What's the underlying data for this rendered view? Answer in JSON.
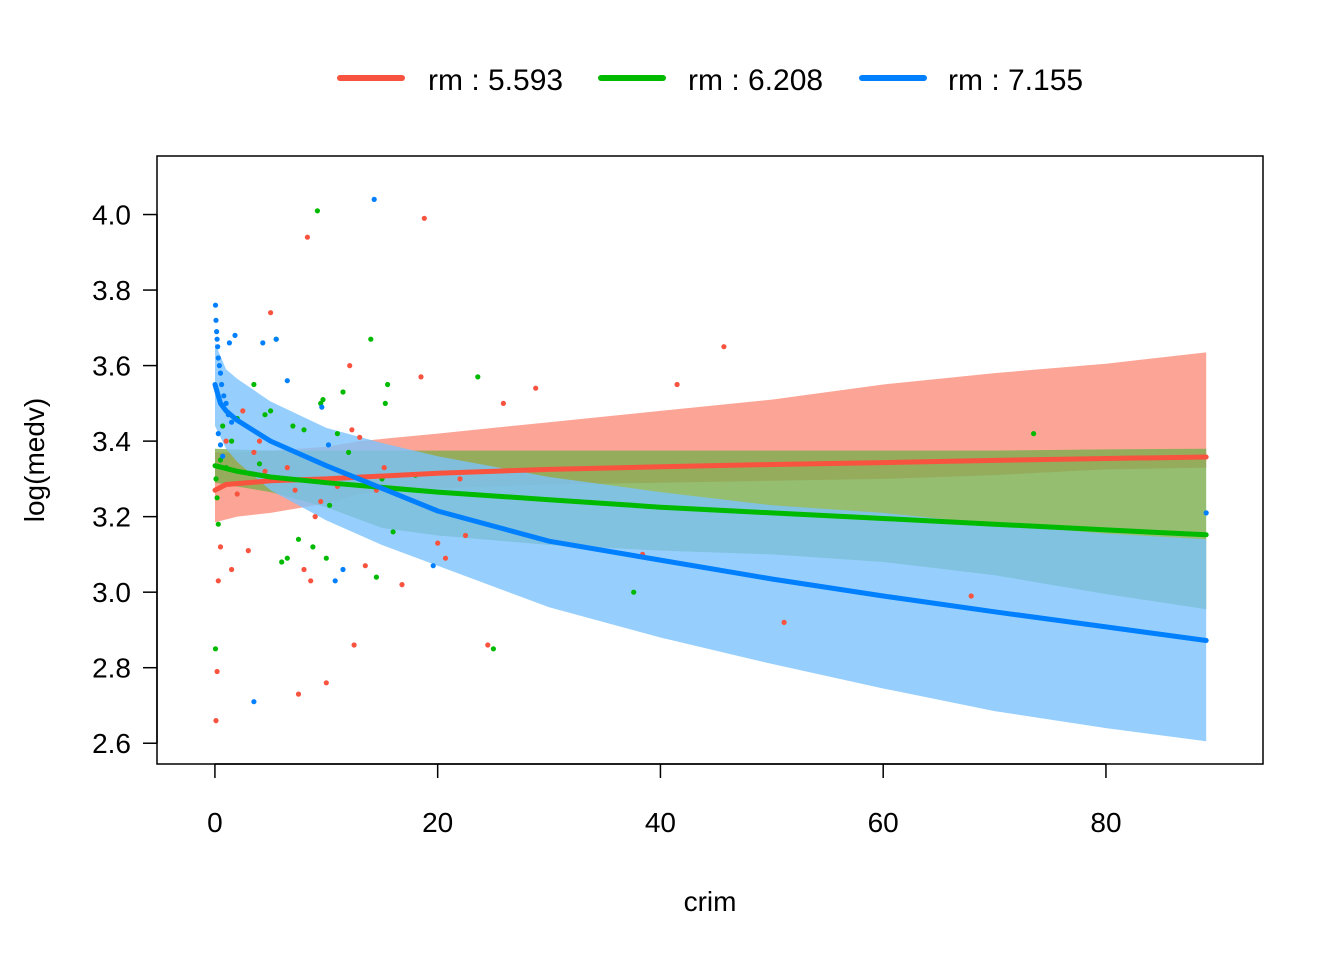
{
  "chart_data": {
    "type": "line",
    "xlabel": "crim",
    "ylabel": "log(medv)",
    "xlim": [
      -5.2,
      94.1
    ],
    "ylim": [
      2.545,
      4.155
    ],
    "x_ticks": [
      0,
      20,
      40,
      60,
      80
    ],
    "y_ticks": [
      2.6,
      2.8,
      3.0,
      3.2,
      3.4,
      3.6,
      3.8,
      4.0
    ],
    "x_tick_labels": [
      "0",
      "20",
      "40",
      "60",
      "80"
    ],
    "y_tick_labels": [
      "2.6",
      "2.8",
      "3.0",
      "3.2",
      "3.4",
      "3.6",
      "3.8",
      "4.0"
    ],
    "legend_position": "top",
    "series": [
      {
        "name": "rm : 5.593",
        "color": "#F8533E",
        "band_color": "#FCA495",
        "curve": [
          [
            0.006,
            3.27
          ],
          [
            1,
            3.285
          ],
          [
            5,
            3.295
          ],
          [
            10,
            3.3
          ],
          [
            20,
            3.315
          ],
          [
            30,
            3.325
          ],
          [
            40,
            3.332
          ],
          [
            50,
            3.338
          ],
          [
            60,
            3.343
          ],
          [
            70,
            3.349
          ],
          [
            80,
            3.354
          ],
          [
            89,
            3.358
          ]
        ],
        "band_lower": [
          [
            0.006,
            3.185
          ],
          [
            2,
            3.2
          ],
          [
            5,
            3.21
          ],
          [
            10,
            3.235
          ],
          [
            13,
            3.26
          ],
          [
            20,
            3.275
          ],
          [
            30,
            3.285
          ],
          [
            40,
            3.29
          ],
          [
            50,
            3.295
          ],
          [
            60,
            3.3
          ],
          [
            70,
            3.31
          ],
          [
            80,
            3.325
          ],
          [
            89,
            3.33
          ]
        ],
        "band_upper": [
          [
            0.006,
            3.37
          ],
          [
            2,
            3.37
          ],
          [
            5,
            3.375
          ],
          [
            10,
            3.385
          ],
          [
            13,
            3.4
          ],
          [
            20,
            3.42
          ],
          [
            30,
            3.45
          ],
          [
            40,
            3.48
          ],
          [
            50,
            3.51
          ],
          [
            60,
            3.55
          ],
          [
            70,
            3.58
          ],
          [
            80,
            3.605
          ],
          [
            89,
            3.635
          ]
        ],
        "points": [
          [
            0.1,
            2.66
          ],
          [
            0.2,
            2.79
          ],
          [
            0.3,
            3.03
          ],
          [
            0.5,
            3.12
          ],
          [
            1.0,
            3.4
          ],
          [
            1.5,
            3.06
          ],
          [
            2.0,
            3.26
          ],
          [
            2.5,
            3.48
          ],
          [
            3.0,
            3.11
          ],
          [
            3.5,
            3.37
          ],
          [
            4.0,
            3.4
          ],
          [
            4.5,
            3.32
          ],
          [
            5.0,
            3.74
          ],
          [
            6.5,
            3.33
          ],
          [
            7.2,
            3.27
          ],
          [
            7.5,
            2.73
          ],
          [
            8.0,
            3.06
          ],
          [
            8.3,
            3.94
          ],
          [
            8.6,
            3.03
          ],
          [
            9.0,
            3.2
          ],
          [
            9.5,
            3.24
          ],
          [
            10.0,
            2.76
          ],
          [
            11.0,
            3.28
          ],
          [
            12.1,
            3.6
          ],
          [
            12.3,
            3.43
          ],
          [
            12.5,
            2.86
          ],
          [
            13.0,
            3.41
          ],
          [
            13.5,
            3.07
          ],
          [
            14.5,
            3.27
          ],
          [
            15.2,
            3.33
          ],
          [
            16.8,
            3.02
          ],
          [
            18.5,
            3.57
          ],
          [
            18.8,
            3.99
          ],
          [
            20.0,
            3.13
          ],
          [
            20.7,
            3.09
          ],
          [
            22.0,
            3.3
          ],
          [
            22.5,
            3.15
          ],
          [
            24.5,
            2.86
          ],
          [
            25.9,
            3.5
          ],
          [
            28.8,
            3.54
          ],
          [
            38.4,
            3.1
          ],
          [
            41.5,
            3.55
          ],
          [
            45.7,
            3.65
          ],
          [
            51.1,
            2.92
          ],
          [
            67.9,
            2.99
          ]
        ]
      },
      {
        "name": "rm : 6.208",
        "color": "#00BA00",
        "band_color": "#7BAE4E",
        "curve": [
          [
            0.006,
            3.335
          ],
          [
            2,
            3.32
          ],
          [
            5,
            3.305
          ],
          [
            10,
            3.29
          ],
          [
            20,
            3.265
          ],
          [
            30,
            3.245
          ],
          [
            40,
            3.225
          ],
          [
            50,
            3.21
          ],
          [
            60,
            3.195
          ],
          [
            70,
            3.18
          ],
          [
            80,
            3.165
          ],
          [
            89,
            3.152
          ]
        ],
        "band_lower": [
          [
            0.006,
            3.29
          ],
          [
            5,
            3.265
          ],
          [
            10,
            3.225
          ],
          [
            15,
            3.17
          ],
          [
            20,
            3.15
          ],
          [
            30,
            3.125
          ],
          [
            40,
            3.11
          ],
          [
            50,
            3.1
          ],
          [
            60,
            3.08
          ],
          [
            70,
            3.045
          ],
          [
            80,
            2.995
          ],
          [
            89,
            2.955
          ]
        ],
        "band_upper": [
          [
            0.006,
            3.38
          ],
          [
            5,
            3.375
          ],
          [
            10,
            3.375
          ],
          [
            20,
            3.375
          ],
          [
            30,
            3.375
          ],
          [
            40,
            3.375
          ],
          [
            50,
            3.375
          ],
          [
            60,
            3.375
          ],
          [
            70,
            3.375
          ],
          [
            80,
            3.378
          ],
          [
            89,
            3.38
          ]
        ],
        "points": [
          [
            0.05,
            2.85
          ],
          [
            0.1,
            3.3
          ],
          [
            0.2,
            3.25
          ],
          [
            0.3,
            3.18
          ],
          [
            0.5,
            3.35
          ],
          [
            0.7,
            3.44
          ],
          [
            1.0,
            3.33
          ],
          [
            1.5,
            3.4
          ],
          [
            2.0,
            3.46
          ],
          [
            3.5,
            3.55
          ],
          [
            4.0,
            3.34
          ],
          [
            4.5,
            3.47
          ],
          [
            5.0,
            3.48
          ],
          [
            5.5,
            3.67
          ],
          [
            6.0,
            3.08
          ],
          [
            6.5,
            3.09
          ],
          [
            7.0,
            3.44
          ],
          [
            7.5,
            3.14
          ],
          [
            8.0,
            3.43
          ],
          [
            8.8,
            3.12
          ],
          [
            9.2,
            4.01
          ],
          [
            9.5,
            3.5
          ],
          [
            9.7,
            3.51
          ],
          [
            10.0,
            3.09
          ],
          [
            10.3,
            3.23
          ],
          [
            11.0,
            3.42
          ],
          [
            11.5,
            3.53
          ],
          [
            12.0,
            3.37
          ],
          [
            14.0,
            3.67
          ],
          [
            14.5,
            3.04
          ],
          [
            15.0,
            3.3
          ],
          [
            15.3,
            3.5
          ],
          [
            15.5,
            3.55
          ],
          [
            16.0,
            3.16
          ],
          [
            18.0,
            3.31
          ],
          [
            23.6,
            3.57
          ],
          [
            25.0,
            2.85
          ],
          [
            37.6,
            3.0
          ],
          [
            73.5,
            3.42
          ]
        ]
      },
      {
        "name": "rm : 7.155",
        "color": "#0080FF",
        "band_color": "#7CC3FC",
        "curve": [
          [
            0.006,
            3.55
          ],
          [
            0.5,
            3.5
          ],
          [
            1,
            3.48
          ],
          [
            2,
            3.455
          ],
          [
            5,
            3.4
          ],
          [
            10,
            3.335
          ],
          [
            15,
            3.275
          ],
          [
            20,
            3.215
          ],
          [
            30,
            3.135
          ],
          [
            40,
            3.085
          ],
          [
            50,
            3.035
          ],
          [
            60,
            2.99
          ],
          [
            70,
            2.948
          ],
          [
            80,
            2.908
          ],
          [
            89,
            2.872
          ]
        ],
        "band_lower": [
          [
            0.006,
            3.44
          ],
          [
            1,
            3.38
          ],
          [
            2,
            3.345
          ],
          [
            5,
            3.27
          ],
          [
            10,
            3.19
          ],
          [
            15,
            3.125
          ],
          [
            20,
            3.07
          ],
          [
            30,
            2.96
          ],
          [
            40,
            2.88
          ],
          [
            50,
            2.81
          ],
          [
            60,
            2.745
          ],
          [
            70,
            2.685
          ],
          [
            80,
            2.64
          ],
          [
            89,
            2.605
          ]
        ],
        "band_upper": [
          [
            0.006,
            3.66
          ],
          [
            1,
            3.59
          ],
          [
            2,
            3.565
          ],
          [
            5,
            3.505
          ],
          [
            10,
            3.435
          ],
          [
            15,
            3.395
          ],
          [
            20,
            3.36
          ],
          [
            30,
            3.305
          ],
          [
            40,
            3.265
          ],
          [
            50,
            3.23
          ],
          [
            60,
            3.21
          ],
          [
            70,
            3.18
          ],
          [
            80,
            3.155
          ],
          [
            89,
            3.14
          ]
        ],
        "points": [
          [
            0.05,
            3.76
          ],
          [
            0.1,
            3.72
          ],
          [
            0.15,
            3.69
          ],
          [
            0.2,
            3.67
          ],
          [
            0.25,
            3.65
          ],
          [
            0.3,
            3.62
          ],
          [
            0.4,
            3.6
          ],
          [
            0.5,
            3.58
          ],
          [
            0.6,
            3.55
          ],
          [
            0.8,
            3.52
          ],
          [
            1.0,
            3.5
          ],
          [
            1.2,
            3.47
          ],
          [
            1.5,
            3.45
          ],
          [
            0.3,
            3.42
          ],
          [
            0.5,
            3.39
          ],
          [
            0.7,
            3.36
          ],
          [
            1.3,
            3.66
          ],
          [
            1.8,
            3.68
          ],
          [
            3.5,
            2.71
          ],
          [
            4.3,
            3.66
          ],
          [
            5.5,
            3.67
          ],
          [
            6.5,
            3.56
          ],
          [
            9.6,
            3.49
          ],
          [
            10.2,
            3.39
          ],
          [
            10.8,
            3.03
          ],
          [
            11.5,
            3.06
          ],
          [
            14.3,
            4.04
          ],
          [
            19.6,
            3.07
          ],
          [
            89.0,
            3.21
          ]
        ]
      }
    ]
  }
}
